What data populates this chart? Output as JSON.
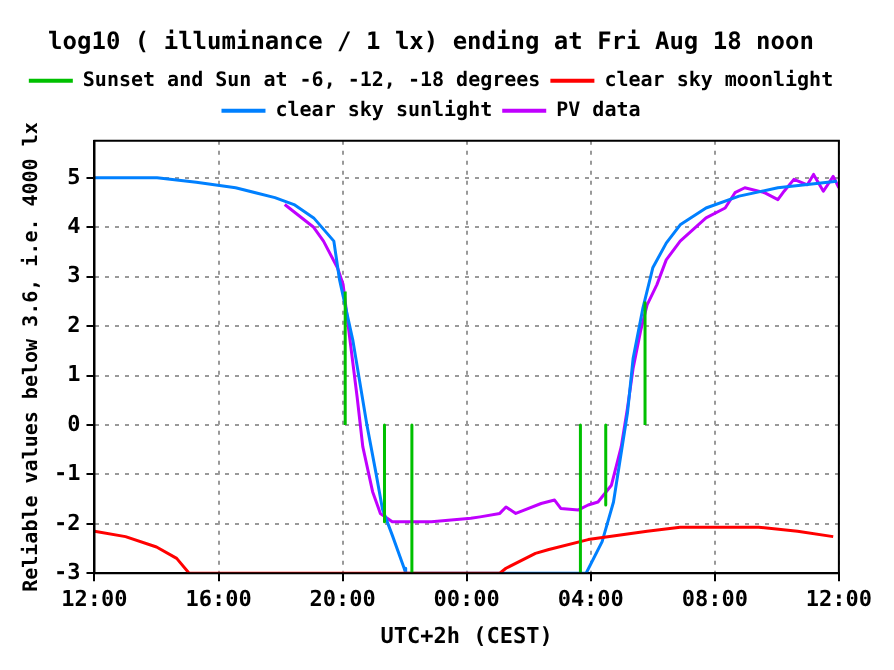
{
  "chart_data": {
    "type": "line",
    "title": "log10 ( illuminance / 1 lx) ending at Fri Aug 18 noon",
    "xlabel": "UTC+2h (CEST)",
    "ylabel": "Reliable values below 3.6, i.e. 4000 lx",
    "xlim": [
      "--08-17T12:00",
      "--08-18T12:00"
    ],
    "xticks": [
      {
        "value": "--08-17T12:00",
        "label": "12:00"
      },
      {
        "value": "--08-17T16:00",
        "label": "16:00"
      },
      {
        "value": "--08-17T20:00",
        "label": "20:00"
      },
      {
        "value": "--08-18T00:00",
        "label": "00:00"
      },
      {
        "value": "--08-18T04:00",
        "label": "04:00"
      },
      {
        "value": "--08-18T08:00",
        "label": "08:00"
      },
      {
        "value": "--08-18T12:00",
        "label": "12:00"
      }
    ],
    "ylim": [
      -3,
      5.75
    ],
    "yticks": [
      -3,
      -2,
      -1,
      0,
      1,
      2,
      3,
      4,
      5
    ],
    "grid": true,
    "legend": "top",
    "marker": "none",
    "line_style": "solid",
    "series": [
      {
        "name": "Sunset and Sun at -6, -12, -18 degrees",
        "color": "#00c000",
        "x": [
          "--08-17T20:05",
          "--08-17T20:05",
          null,
          "--08-17T21:21",
          "--08-17T21:21",
          null,
          "--08-17T22:14",
          "--08-17T22:14",
          null,
          "--08-18T03:40",
          "--08-18T03:40",
          null,
          "--08-18T04:29",
          "--08-18T04:29",
          null,
          "--08-18T05:45",
          "--08-18T05:45"
        ],
        "values": [
          0,
          2.7,
          null,
          0,
          -1.96,
          null,
          0,
          -3,
          null,
          0,
          -3,
          null,
          0,
          -1.62,
          null,
          0,
          2.5
        ]
      },
      {
        "name": "clear sky moonlight",
        "color": "#ff0000",
        "x": [
          "--08-17T12:00",
          "--08-17T13:00",
          "--08-17T14:00",
          "--08-17T14:39",
          "--08-17T15:03",
          "--08-18T01:04",
          "--08-18T01:16",
          "--08-18T02:13",
          "--08-18T02:39",
          "--08-18T03:55",
          "--08-18T05:49",
          "--08-18T06:53",
          "--08-18T09:25",
          "--08-18T10:40",
          "--08-18T11:49"
        ],
        "values": [
          -2.15,
          -2.26,
          -2.47,
          -2.7,
          -3,
          -3,
          -2.9,
          -2.6,
          -2.52,
          -2.32,
          -2.15,
          -2.07,
          -2.07,
          -2.15,
          -2.26
        ]
      },
      {
        "name": "clear sky sunlight",
        "color": "#0080ff",
        "x": [
          "--08-17T12:00",
          "--08-17T14:01",
          "--08-17T15:17",
          "--08-17T16:33",
          "--08-17T17:49",
          "--08-17T18:26",
          "--08-17T19:04",
          "--08-17T19:43",
          "--08-17T19:54",
          "--08-17T20:20",
          "--08-17T20:47",
          "--08-17T21:05",
          "--08-17T21:17",
          "--08-17T21:36",
          "--08-17T21:59",
          "--08-17T22:02",
          "--08-18T03:51",
          "--08-18T04:22",
          "--08-18T04:44",
          "--08-18T05:11",
          "--08-18T05:22",
          "--08-18T05:41",
          "--08-18T06:00",
          "--08-18T06:26",
          "--08-18T06:53",
          "--08-18T07:43",
          "--08-18T08:47",
          "--08-18T10:02",
          "--08-18T11:56"
        ],
        "values": [
          5,
          5,
          4.91,
          4.8,
          4.6,
          4.46,
          4.19,
          3.72,
          2.94,
          1.7,
          0,
          -1,
          -1.7,
          -2.23,
          -2.9,
          -3,
          -3,
          -2.36,
          -1.56,
          0.24,
          1.35,
          2.37,
          3.18,
          3.68,
          4.05,
          4.39,
          4.63,
          4.8,
          4.93
        ]
      },
      {
        "name": "PV data",
        "color": "#c000ff",
        "x": [
          "--08-17T18:08",
          "--08-17T19:04",
          "--08-17T19:23",
          "--08-17T19:50",
          "--08-17T20:01",
          "--08-17T20:13",
          "--08-17T20:28",
          "--08-17T20:39",
          "--08-17T20:58",
          "--08-17T21:13",
          "--08-17T21:36",
          "--08-17T22:52",
          "--08-18T00:08",
          "--08-18T00:26",
          "--08-18T01:04",
          "--08-18T01:16",
          "--08-18T01:35",
          "--08-18T02:24",
          "--08-18T02:50",
          "--08-18T03:02",
          "--08-18T03:36",
          "--08-18T03:55",
          "--08-18T04:14",
          "--08-18T04:40",
          "--08-18T04:59",
          "--08-18T05:11",
          "--08-18T05:22",
          "--08-18T05:37",
          "--08-18T05:49",
          "--08-18T06:08",
          "--08-18T06:26",
          "--08-18T06:53",
          "--08-18T07:43",
          "--08-18T08:20",
          "--08-18T08:39",
          "--08-18T08:58",
          "--08-18T09:36",
          "--08-18T10:02",
          "--08-18T10:14",
          "--08-18T10:33",
          "--08-18T10:59",
          "--08-18T11:11",
          "--08-18T11:30",
          "--08-18T11:49",
          "--08-18T12:00"
        ],
        "values": [
          4.46,
          4.0,
          3.72,
          3.18,
          2.84,
          1.82,
          0.57,
          -0.44,
          -1.35,
          -1.79,
          -1.96,
          -1.96,
          -1.89,
          -1.86,
          -1.79,
          -1.66,
          -1.79,
          -1.59,
          -1.52,
          -1.69,
          -1.72,
          -1.62,
          -1.56,
          -1.22,
          -0.44,
          0.34,
          1.15,
          1.93,
          2.43,
          2.84,
          3.34,
          3.72,
          4.19,
          4.39,
          4.7,
          4.8,
          4.7,
          4.56,
          4.73,
          4.97,
          4.86,
          5.07,
          4.73,
          5.03,
          4.8
        ]
      }
    ]
  }
}
